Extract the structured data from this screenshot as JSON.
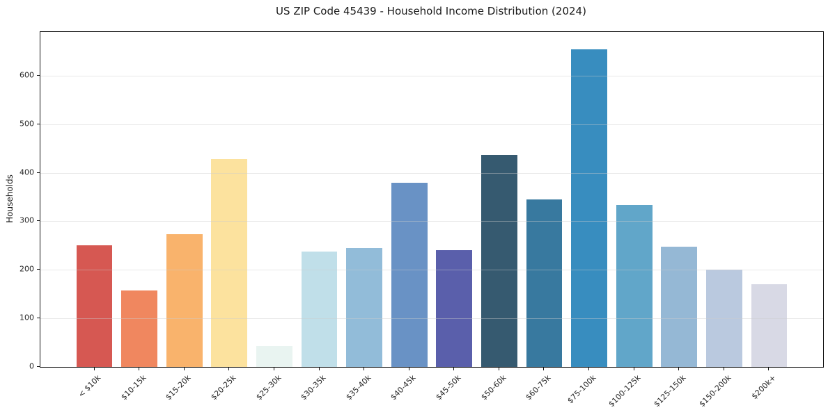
{
  "chart_data": {
    "type": "bar",
    "title": "US ZIP Code 45439 - Household Income Distribution (2024)",
    "xlabel": "",
    "ylabel": "Households",
    "categories": [
      "< $10k",
      "$10-15k",
      "$15-20k",
      "$20-25k",
      "$25-30k",
      "$30-35k",
      "$35-40k",
      "$40-45k",
      "$45-50k",
      "$50-60k",
      "$60-75k",
      "$75-100k",
      "$100-125k",
      "$125-150k",
      "$150-200k",
      "$200k+"
    ],
    "values": [
      251,
      158,
      273,
      428,
      43,
      237,
      245,
      380,
      240,
      437,
      345,
      654,
      334,
      247,
      201,
      171
    ],
    "bar_colors": [
      "#d65852",
      "#f0875f",
      "#f9b36c",
      "#fce29e",
      "#e9f4f1",
      "#c0dfe9",
      "#92bcd9",
      "#6992c5",
      "#5a5fab",
      "#365a70",
      "#38799f",
      "#388dbf",
      "#61a6c9",
      "#95b8d5",
      "#bac9df",
      "#d8d9e5"
    ],
    "y_ticks": [
      0,
      100,
      200,
      300,
      400,
      500,
      600
    ],
    "ylim": [
      0,
      690
    ],
    "grid": "horizontal",
    "legend": "none",
    "colors": {
      "background": "#ffffff",
      "spine": "#111111",
      "grid": "#eaeaea",
      "text": "#262626"
    }
  }
}
